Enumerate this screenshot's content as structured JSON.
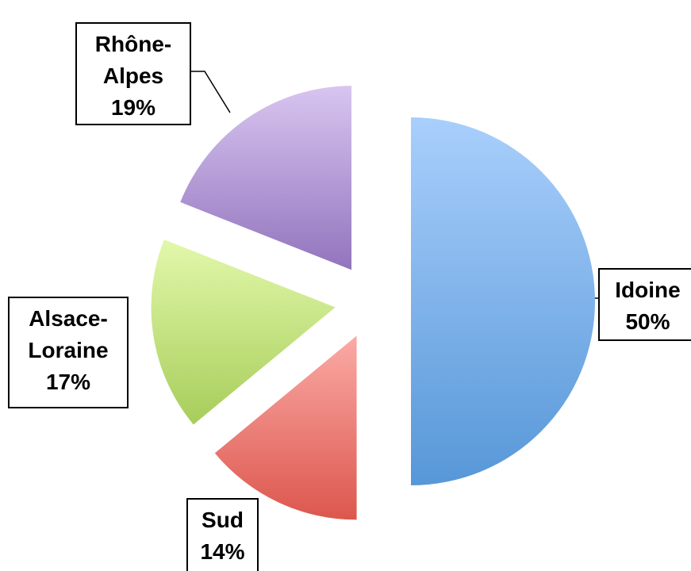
{
  "chart_data": {
    "type": "pie",
    "categories": [
      "Idoine",
      "Sud",
      "Alsace-Loraine",
      "Rhône-Alpes"
    ],
    "values": [
      50,
      14,
      17,
      19
    ],
    "value_labels": [
      "50%",
      "14%",
      "17%",
      "19%"
    ],
    "colors": [
      [
        "#a9cffc",
        "#5797d8"
      ],
      [
        "#fbaaa6",
        "#dc574d"
      ],
      [
        "#e2f8ab",
        "#a7cd5a"
      ],
      [
        "#d8c5f0",
        "#9274bd"
      ]
    ],
    "exploded": true
  }
}
